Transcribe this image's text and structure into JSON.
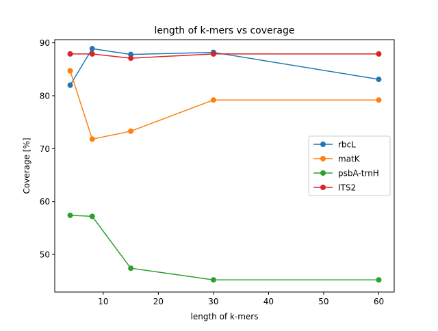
{
  "chart_data": {
    "type": "line",
    "title": "length of k-mers vs coverage",
    "xlabel": "length of k-mers",
    "ylabel": "Coverage [%]",
    "xlim": [
      1.2,
      62.8
    ],
    "ylim": [
      42.9,
      90.6
    ],
    "xticks": [
      10,
      20,
      30,
      40,
      50,
      60
    ],
    "yticks": [
      50,
      60,
      70,
      80,
      90
    ],
    "x": [
      4,
      8,
      15,
      30,
      60
    ],
    "grid": false,
    "legend_position": "center-right",
    "series": [
      {
        "name": "rbcL",
        "color": "#1f77b4",
        "values": [
          82.0,
          88.9,
          87.8,
          88.2,
          83.1
        ]
      },
      {
        "name": "matK",
        "color": "#ff7f0e",
        "values": [
          84.7,
          71.8,
          73.3,
          79.2,
          79.2
        ]
      },
      {
        "name": "psbA-trnH",
        "color": "#2ca02c",
        "values": [
          57.4,
          57.2,
          47.4,
          45.2,
          45.2
        ]
      },
      {
        "name": "ITS2",
        "color": "#d62728",
        "values": [
          87.9,
          87.9,
          87.1,
          87.9,
          87.9
        ]
      }
    ]
  }
}
